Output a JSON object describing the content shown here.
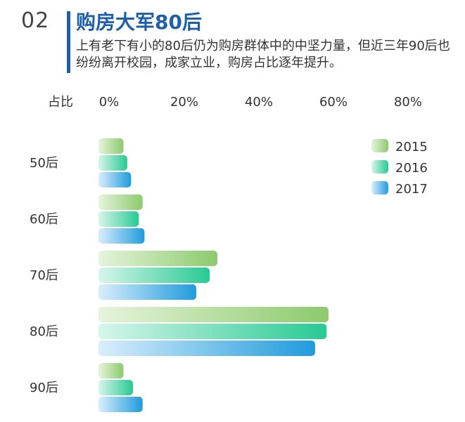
{
  "header": {
    "section_number": "02",
    "title": "购房大军80后",
    "subtitle": "上有老下有小的80后仍为购房群体中的中坚力量，但近三年90后也纷纷离开校园，成家立业，购房占比逐年提升。"
  },
  "colors": {
    "series_2015": [
      "#e6f4dc",
      "#8cca6c"
    ],
    "series_2016": [
      "#d6f6ea",
      "#28c994"
    ],
    "series_2017": [
      "#d9eefc",
      "#1f9bdc"
    ]
  },
  "chart_data": {
    "type": "bar",
    "orientation": "horizontal",
    "title": "",
    "axis_label": "占比",
    "xlim": [
      0,
      80
    ],
    "x_ticks": [
      "0%",
      "20%",
      "40%",
      "60%",
      "80%"
    ],
    "categories": [
      "50后",
      "60后",
      "70后",
      "80后",
      "90后"
    ],
    "series": [
      {
        "name": "2015",
        "values": [
          6.5,
          11.5,
          31,
          60,
          6.5
        ]
      },
      {
        "name": "2016",
        "values": [
          7.5,
          10.5,
          29,
          59.5,
          9
        ]
      },
      {
        "name": "2017",
        "values": [
          8.5,
          12,
          25.5,
          56.5,
          11.5
        ]
      }
    ],
    "legend_position": "right",
    "grid": false
  }
}
